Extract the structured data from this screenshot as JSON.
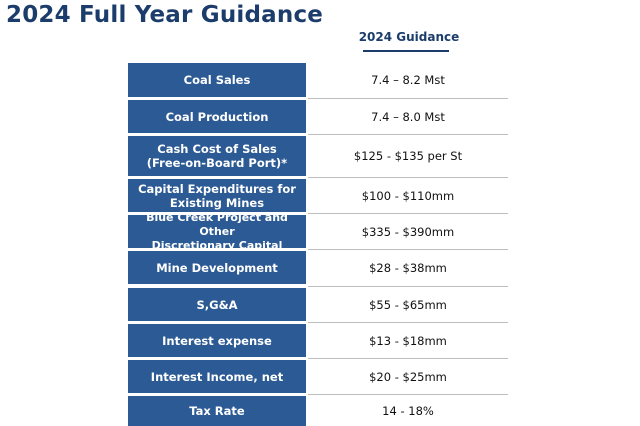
{
  "title": "2024 Full Year Guidance",
  "column_header": "2024 Guidance",
  "rows": [
    {
      "label": "Coal Sales",
      "value": "7.4 – 8.2 Mst"
    },
    {
      "label": "Coal Production",
      "value": "7.4 – 8.0 Mst"
    },
    {
      "label": "Cash Cost of Sales\n(Free-on-Board Port)*",
      "value": "$125 - $135 per St"
    },
    {
      "label": "Capital Expenditures for\nExisting Mines",
      "value": "$100 - $110mm"
    },
    {
      "label": "Blue Creek Project and Other\nDiscretionary Capital",
      "value": "$335 - $390mm"
    },
    {
      "label": "Mine Development",
      "value": "$28 - $38mm"
    },
    {
      "label": "S,G&A",
      "value": "$55 - $65mm"
    },
    {
      "label": "Interest expense",
      "value": "$13 - $18mm"
    },
    {
      "label": "Interest Income, net",
      "value": "$20 - $25mm"
    },
    {
      "label": "Tax Rate",
      "value": "14 - 18%"
    }
  ],
  "colors": {
    "title": "#1c3d6b",
    "label_fill": "#2c5a94",
    "label_text": "#ffffff",
    "divider": "#bdbdbd"
  }
}
